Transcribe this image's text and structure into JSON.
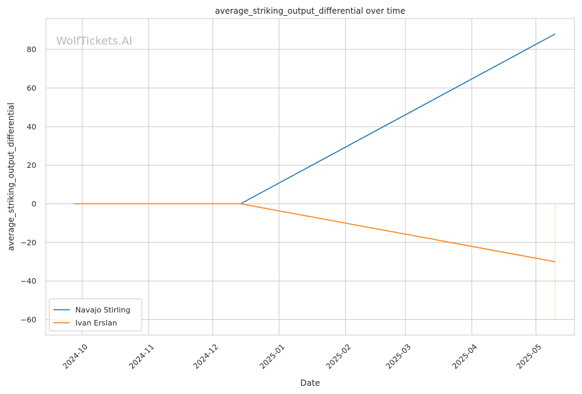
{
  "chart_data": {
    "type": "line",
    "title": "average_striking_output_differential over time",
    "xlabel": "Date",
    "ylabel": "average_striking_output_differential",
    "watermark": "WolfTickets.AI",
    "xlim": [
      "2024-09-14",
      "2025-05-19"
    ],
    "ylim": [
      -68,
      96
    ],
    "x_ticks": [
      "2024-10-01",
      "2024-11-01",
      "2024-12-01",
      "2025-01-01",
      "2025-02-01",
      "2025-03-01",
      "2025-04-01",
      "2025-05-01"
    ],
    "x_tick_labels": [
      "2024-10",
      "2024-11",
      "2024-12",
      "2025-01",
      "2025-02",
      "2025-03",
      "2025-04",
      "2025-05"
    ],
    "y_ticks": [
      -60,
      -40,
      -20,
      0,
      20,
      40,
      60,
      80
    ],
    "y_tick_labels": [
      "−60",
      "−40",
      "−20",
      "0",
      "20",
      "40",
      "60",
      "80"
    ],
    "grid": true,
    "legend_position": "lower-left",
    "series": [
      {
        "name": "Navajo Stirling",
        "color": "#1f77b4",
        "points": [
          {
            "x": "2024-12-14",
            "y": 0
          },
          {
            "x": "2025-05-10",
            "y": 88
          }
        ]
      },
      {
        "name": "Ivan Erslan",
        "color": "#ff7f0e",
        "points": [
          {
            "x": "2024-09-27",
            "y": 0
          },
          {
            "x": "2024-12-14",
            "y": 0
          },
          {
            "x": "2025-05-10",
            "y": -30
          }
        ]
      }
    ],
    "annotations": [
      {
        "type": "vline",
        "x": "2025-05-10",
        "y_range": [
          -60,
          0
        ],
        "color": "#ff7f0e",
        "opacity": 0.3
      }
    ]
  }
}
